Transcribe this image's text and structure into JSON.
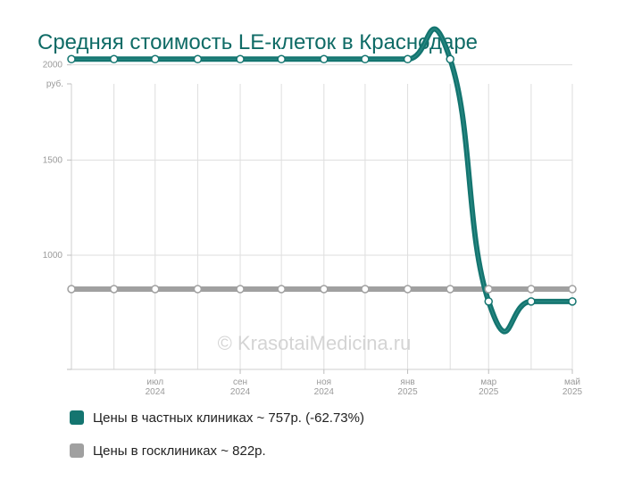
{
  "chart_data": {
    "type": "line",
    "title": "Средняя стоимость LE-клеток в Краснодаре",
    "ylabel": "руб.",
    "ylim": [
      400,
      1900
    ],
    "yticks": [
      1000,
      1500,
      2000
    ],
    "ytick_labels": [
      "1000",
      "1500",
      "2000"
    ],
    "y_unit_label": "руб.",
    "xlim": [
      "2024-05-01",
      "2025-05-01"
    ],
    "x_ticks": [
      {
        "date": "2024-07-01",
        "month": "июл",
        "year": "2024"
      },
      {
        "date": "2024-09-01",
        "month": "сен",
        "year": "2024"
      },
      {
        "date": "2024-11-01",
        "month": "ноя",
        "year": "2024"
      },
      {
        "date": "2025-01-01",
        "month": "янв",
        "year": "2025"
      },
      {
        "date": "2025-03-01",
        "month": "мар",
        "year": "2025"
      },
      {
        "date": "2025-05-01",
        "month": "май",
        "year": "2025"
      }
    ],
    "x_grid": [
      "2024-06-01",
      "2024-07-01",
      "2024-08-01",
      "2024-09-01",
      "2024-10-01",
      "2024-11-01",
      "2024-12-01",
      "2025-01-01",
      "2025-02-01",
      "2025-03-01",
      "2025-04-01",
      "2025-05-01"
    ],
    "grid": true,
    "legend_position": "bottom-left",
    "watermark": "© KrasotaiMedicina.ru",
    "x": [
      "2024-05-01",
      "2024-06-01",
      "2024-07-01",
      "2024-08-01",
      "2024-09-01",
      "2024-10-01",
      "2024-11-01",
      "2024-12-01",
      "2025-01-01",
      "2025-02-01",
      "2025-03-01",
      "2025-04-01",
      "2025-05-01"
    ],
    "series": [
      {
        "name": "Цены в частных клиниках",
        "legend": "Цены в частных клиниках ~ 757р. (-62.73%)",
        "color": "#147570",
        "values": [
          2030,
          2030,
          2030,
          2030,
          2030,
          2030,
          2030,
          2030,
          2030,
          2030,
          757,
          757,
          757
        ]
      },
      {
        "name": "Цены в госклиниках",
        "legend": "Цены в госклиниках ~ 822р.",
        "color": "#a0a0a0",
        "values": [
          822,
          822,
          822,
          822,
          822,
          822,
          822,
          822,
          822,
          822,
          822,
          822,
          822
        ]
      }
    ]
  }
}
